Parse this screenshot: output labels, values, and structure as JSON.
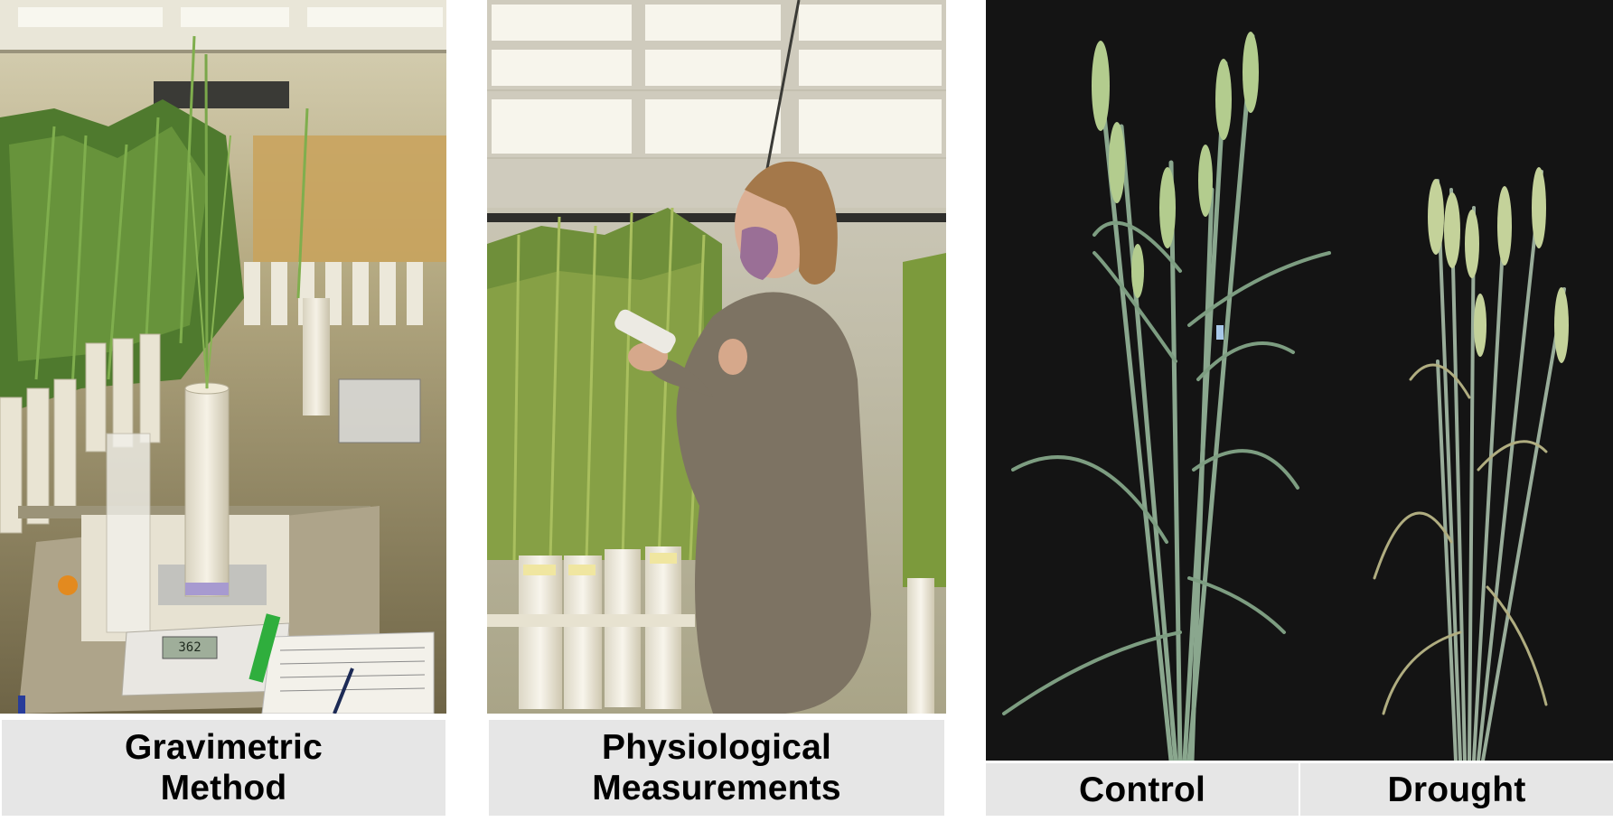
{
  "panels": [
    {
      "id": "gravimetric",
      "caption": [
        "Gravimetric",
        "Method"
      ]
    },
    {
      "id": "physiological",
      "caption": [
        "Physiological",
        "Measurements"
      ]
    },
    {
      "id": "comparison",
      "captions": [
        "Control",
        "Drought"
      ]
    }
  ],
  "scale_display": "362"
}
